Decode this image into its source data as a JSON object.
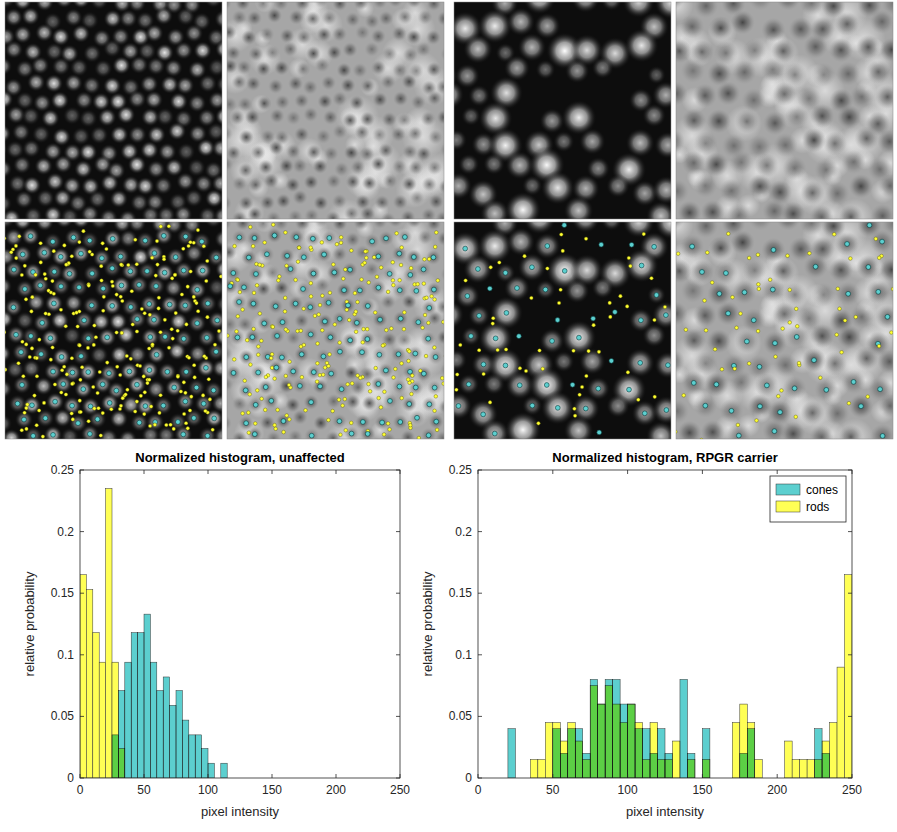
{
  "chart_data": [
    {
      "type": "histogram",
      "title": "Normalized histogram, unaffected",
      "x_label": "pixel intensity",
      "y_label": "relative probability",
      "bins": [
        0,
        5,
        10,
        15,
        20,
        25,
        30,
        35,
        40,
        45,
        50,
        55,
        60,
        65,
        70,
        75,
        80,
        85,
        90,
        95,
        100,
        105,
        110,
        115,
        120,
        125,
        130,
        135,
        140,
        145,
        150,
        155,
        160,
        165,
        170,
        175,
        180,
        185,
        190,
        195,
        200,
        205,
        210,
        215,
        220,
        225,
        230,
        235,
        240,
        245,
        250
      ],
      "series": [
        {
          "color": "#5ccfcf",
          "values": [
            0,
            0,
            0,
            0,
            0,
            0.035,
            0.071,
            0.094,
            0.118,
            0.118,
            0.133,
            0.094,
            0.071,
            0.082,
            0.059,
            0.071,
            0.047,
            0.035,
            0.035,
            0.024,
            0.012,
            0,
            0.012,
            0,
            0,
            0,
            0,
            0,
            0,
            0,
            0,
            0,
            0,
            0,
            0,
            0,
            0,
            0,
            0,
            0,
            0,
            0,
            0,
            0,
            0,
            0,
            0,
            0,
            0,
            0
          ]
        },
        {
          "color": "#ffff55",
          "values": [
            0.165,
            0.153,
            0.118,
            0.094,
            0.235,
            0.094,
            0.024,
            0,
            0,
            0,
            0,
            0,
            0,
            0,
            0,
            0,
            0,
            0,
            0,
            0,
            0,
            0,
            0,
            0,
            0,
            0,
            0,
            0,
            0,
            0,
            0,
            0,
            0,
            0,
            0,
            0,
            0,
            0,
            0,
            0,
            0,
            0,
            0,
            0,
            0,
            0,
            0,
            0,
            0,
            0
          ]
        }
      ],
      "xlim": [
        0,
        250
      ],
      "xticks": [
        0,
        50,
        100,
        150,
        200,
        250
      ],
      "ylim": [
        0,
        0.25
      ],
      "yticks": [
        0,
        0.05,
        0.1,
        0.15,
        0.2,
        0.25
      ]
    },
    {
      "type": "histogram",
      "title": "Normalized histogram, RPGR carrier",
      "x_label": "pixel intensity",
      "y_label": "relative probability",
      "bins": [
        0,
        5,
        10,
        15,
        20,
        25,
        30,
        35,
        40,
        45,
        50,
        55,
        60,
        65,
        70,
        75,
        80,
        85,
        90,
        95,
        100,
        105,
        110,
        115,
        120,
        125,
        130,
        135,
        140,
        145,
        150,
        155,
        160,
        165,
        170,
        175,
        180,
        185,
        190,
        195,
        200,
        205,
        210,
        215,
        220,
        225,
        230,
        235,
        240,
        245,
        250
      ],
      "series": [
        {
          "name": "cones",
          "color": "#5ccfcf",
          "values": [
            0,
            0,
            0,
            0,
            0.04,
            0,
            0,
            0,
            0,
            0,
            0.04,
            0.02,
            0.04,
            0.04,
            0.02,
            0.08,
            0.06,
            0.08,
            0.08,
            0.06,
            0.06,
            0.04,
            0.04,
            0.02,
            0.04,
            0.02,
            0,
            0.08,
            0.02,
            0,
            0.04,
            0,
            0,
            0,
            0,
            0.02,
            0.04,
            0,
            0,
            0,
            0,
            0,
            0,
            0,
            0,
            0.04,
            0.02,
            0,
            0,
            0
          ]
        },
        {
          "name": "rods",
          "color": "#ffff55",
          "values": [
            0,
            0,
            0,
            0,
            0,
            0,
            0,
            0.015,
            0.015,
            0.045,
            0.045,
            0.03,
            0.045,
            0.03,
            0.015,
            0.075,
            0.06,
            0.075,
            0.06,
            0.045,
            0.06,
            0.045,
            0.015,
            0.045,
            0.015,
            0.015,
            0.03,
            0,
            0.015,
            0,
            0.015,
            0,
            0,
            0,
            0.045,
            0.06,
            0.045,
            0.015,
            0,
            0,
            0,
            0.03,
            0.015,
            0.015,
            0.015,
            0.015,
            0.03,
            0.045,
            0.09,
            0.165
          ]
        }
      ],
      "legend": "upper right",
      "xlim": [
        0,
        250
      ],
      "xticks": [
        0,
        50,
        100,
        150,
        200,
        250
      ],
      "ylim": [
        0,
        0.25
      ],
      "yticks": [
        0,
        0.05,
        0.1,
        0.15,
        0.2,
        0.25
      ]
    }
  ]
}
